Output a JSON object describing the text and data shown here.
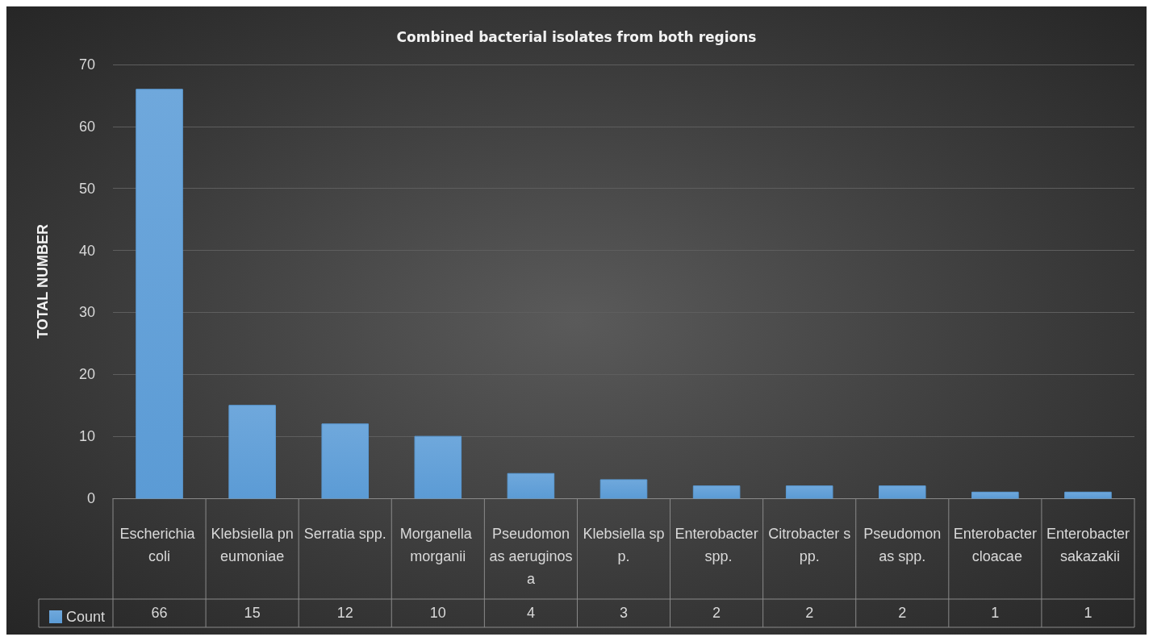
{
  "chart_data": {
    "type": "bar",
    "title": "Combined bacterial isolates from both regions",
    "ylabel": "TOTAL NUMBER",
    "categories": [
      "Escherichia coli",
      "Klebsiella pneumoniae",
      "Serratia spp.",
      "Morganella morganii",
      "Pseudomonas aeruginosa",
      "Klebsiella spp.",
      "Enterobacter spp.",
      "Citrobacter spp.",
      "Pseudomonas spp.",
      "Enterobacter cloacae",
      "Enterobacter sakazakii"
    ],
    "series": [
      {
        "name": "Count",
        "color": "#5b9bd5",
        "values": [
          66,
          15,
          12,
          10,
          4,
          3,
          2,
          2,
          2,
          1,
          1
        ]
      }
    ],
    "ylim": [
      0,
      70
    ],
    "yticks": [
      0,
      10,
      20,
      30,
      40,
      50,
      60,
      70
    ],
    "grid": "y",
    "legend": "bottom left",
    "data_labels": true
  }
}
